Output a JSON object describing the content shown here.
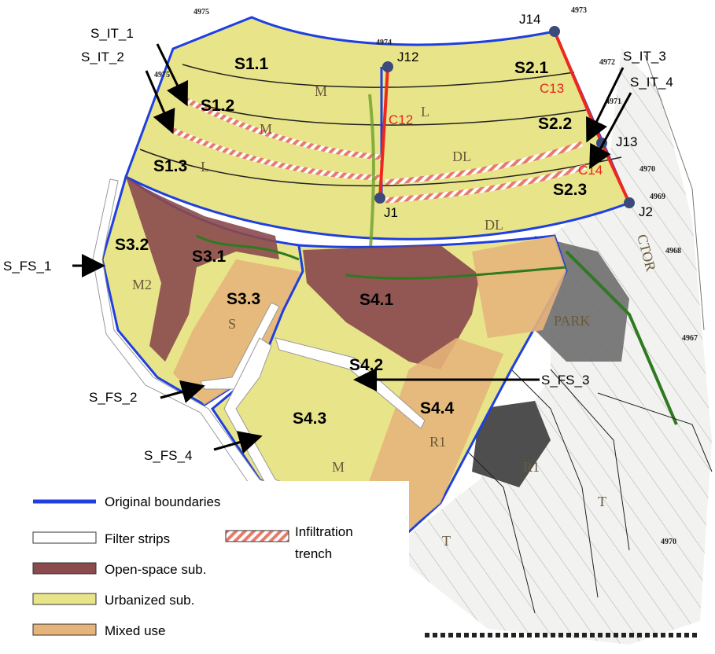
{
  "subcatchments": {
    "s1_1": "S1.1",
    "s1_2": "S1.2",
    "s1_3": "S1.3",
    "s2_1": "S2.1",
    "s2_2": "S2.2",
    "s2_3": "S2.3",
    "s3_1": "S3.1",
    "s3_2": "S3.2",
    "s3_3": "S3.3",
    "s4_1": "S4.1",
    "s4_2": "S4.2",
    "s4_3": "S4.3",
    "s4_4": "S4.4"
  },
  "callouts": {
    "s_it_1": "S_IT_1",
    "s_it_2": "S_IT_2",
    "s_it_3": "S_IT_3",
    "s_it_4": "S_IT_4",
    "s_fs_1": "S_FS_1",
    "s_fs_2": "S_FS_2",
    "s_fs_3": "S_FS_3",
    "s_fs_4": "S_FS_4"
  },
  "junctions": {
    "j1": "J1",
    "j2": "J2",
    "j12": "J12",
    "j13": "J13",
    "j14": "J14"
  },
  "conduits": {
    "c12": "C12",
    "c13": "C13",
    "c14": "C14"
  },
  "elevations": {
    "e4975a": "4975",
    "e4975b": "4975",
    "e4974": "4974",
    "e4973": "4973",
    "e4972": "4972",
    "e4971": "4971",
    "e4970a": "4970",
    "e4969": "4969",
    "e4968": "4968",
    "e4967": "4967",
    "e4970b": "4970"
  },
  "landuse_codes": {
    "m1": "M",
    "m2": "M",
    "l1": "L",
    "l2": "L",
    "dl1": "DL",
    "dl2": "DL",
    "m3": "M2",
    "s": "S",
    "park": "PARK",
    "r1a": "R1",
    "r1b": "R1",
    "t1": "T",
    "t2": "T",
    "m4": "M",
    "ctor": "CTOR"
  },
  "legend": {
    "original_boundaries": "Original boundaries",
    "filter_strips": "Filter strips",
    "infiltration_trench_1": "Infiltration",
    "infiltration_trench_2": "trench",
    "open_space": "Open-space sub.",
    "urbanized": "Urbanized sub.",
    "mixed_use": "Mixed use"
  },
  "colors": {
    "urbanized": "#e8e48a",
    "open_space": "#8a4a4e",
    "mixed_use": "#e6b47a",
    "boundary": "#1f3fe0",
    "conduit": "#f0281c",
    "junction": "#3b4a7a",
    "stream": "#2f7a1f"
  }
}
